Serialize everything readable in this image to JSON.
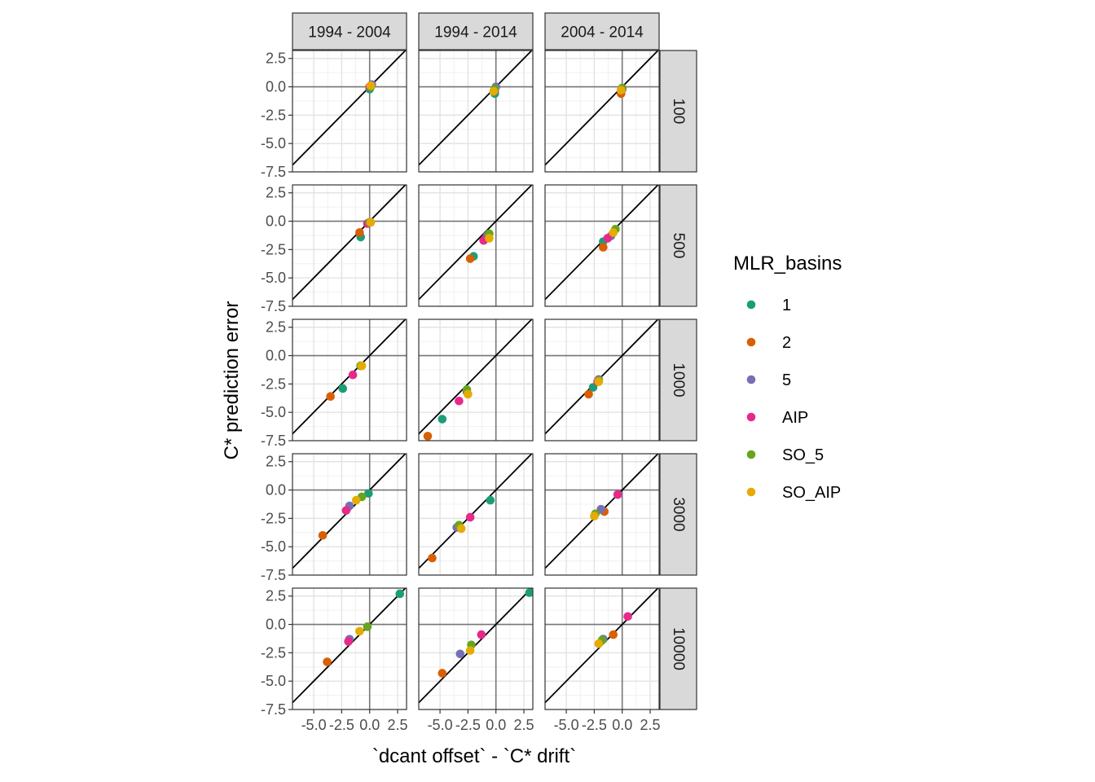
{
  "chart_data": {
    "type": "scatter",
    "title": "",
    "xlabel": "`dcant offset` - `C* drift`",
    "ylabel": "C* prediction error",
    "xlim": [
      -6.9,
      3.3
    ],
    "ylim": [
      -7.5,
      3.2
    ],
    "x_ticks": [
      -5.0,
      -2.5,
      0.0,
      2.5
    ],
    "x_tick_labels": [
      "-5.0",
      "-2.5",
      "0.0",
      "2.5"
    ],
    "y_ticks": [
      2.5,
      0.0,
      -2.5,
      -5.0,
      -7.5
    ],
    "y_tick_labels": [
      "2.5",
      "0.0",
      "-2.5",
      "-5.0",
      "-7.5"
    ],
    "grid": true,
    "reference_line": "y = x",
    "column_facets": [
      "1994 - 2004",
      "1994 - 2014",
      "2004 - 2014"
    ],
    "row_facets": [
      "100",
      "500",
      "1000",
      "3000",
      "10000"
    ],
    "legend": {
      "title": "MLR_basins",
      "placement": "right",
      "entries": [
        {
          "label": "1",
          "color": "#1B9E77"
        },
        {
          "label": "2",
          "color": "#D95F02"
        },
        {
          "label": "5",
          "color": "#7570B3"
        },
        {
          "label": "AIP",
          "color": "#E7298A"
        },
        {
          "label": "SO_5",
          "color": "#66A61E"
        },
        {
          "label": "SO_AIP",
          "color": "#E6AB02"
        }
      ]
    },
    "series_order": [
      "1",
      "2",
      "5",
      "AIP",
      "SO_5",
      "SO_AIP"
    ],
    "panels": [
      [
        {
          "1": [
            0.0,
            -0.2
          ],
          "2": [
            0.1,
            0.1
          ],
          "5": [
            0.2,
            0.2
          ],
          "AIP": [
            0.0,
            0.0
          ],
          "SO_5": [
            0.1,
            0.0
          ],
          "SO_AIP": [
            0.1,
            0.1
          ]
        },
        {
          "1": [
            -0.1,
            -0.6
          ],
          "2": [
            -0.2,
            -0.4
          ],
          "5": [
            0.0,
            0.0
          ],
          "AIP": [
            -0.1,
            -0.3
          ],
          "SO_5": [
            -0.1,
            -0.2
          ],
          "SO_AIP": [
            -0.2,
            -0.4
          ]
        },
        {
          "1": [
            -0.1,
            -0.3
          ],
          "2": [
            -0.1,
            -0.6
          ],
          "5": [
            -0.1,
            -0.3
          ],
          "AIP": [
            0.0,
            -0.2
          ],
          "SO_5": [
            0.0,
            -0.1
          ],
          "SO_AIP": [
            -0.1,
            -0.3
          ]
        }
      ],
      [
        {
          "1": [
            -0.8,
            -1.4
          ],
          "2": [
            -0.9,
            -1.0
          ],
          "5": [
            0.0,
            -0.1
          ],
          "AIP": [
            -0.2,
            -0.2
          ],
          "SO_5": [
            0.0,
            -0.1
          ],
          "SO_AIP": [
            0.1,
            -0.1
          ]
        },
        {
          "1": [
            -2.0,
            -3.1
          ],
          "2": [
            -2.3,
            -3.3
          ],
          "5": [
            -0.8,
            -1.3
          ],
          "AIP": [
            -1.1,
            -1.7
          ],
          "SO_5": [
            -0.6,
            -1.1
          ],
          "SO_AIP": [
            -0.6,
            -1.5
          ]
        },
        {
          "1": [
            -1.7,
            -1.8
          ],
          "2": [
            -1.7,
            -2.3
          ],
          "5": [
            -1.0,
            -1.3
          ],
          "AIP": [
            -1.3,
            -1.5
          ],
          "SO_5": [
            -0.6,
            -0.7
          ],
          "SO_AIP": [
            -0.8,
            -1.0
          ]
        }
      ],
      [
        {
          "1": [
            -2.4,
            -2.9
          ],
          "2": [
            -3.5,
            -3.6
          ],
          "5": [
            -0.8,
            -0.9
          ],
          "AIP": [
            -1.5,
            -1.7
          ],
          "SO_5": [
            -0.8,
            -0.9
          ],
          "SO_AIP": [
            -0.7,
            -0.9
          ]
        },
        {
          "1": [
            -4.8,
            -5.6
          ],
          "2": [
            -6.1,
            -7.1
          ],
          "5": [
            -2.6,
            -3.2
          ],
          "AIP": [
            -3.3,
            -4.0
          ],
          "SO_5": [
            -2.6,
            -3.0
          ],
          "SO_AIP": [
            -2.5,
            -3.4
          ]
        },
        {
          "1": [
            -2.6,
            -2.8
          ],
          "2": [
            -3.0,
            -3.4
          ],
          "5": [
            -2.1,
            -2.1
          ],
          "AIP": [
            -2.2,
            -2.3
          ],
          "SO_5": [
            -2.1,
            -2.2
          ],
          "SO_AIP": [
            -2.1,
            -2.3
          ]
        }
      ],
      [
        {
          "1": [
            -0.1,
            -0.3
          ],
          "2": [
            -4.2,
            -4.0
          ],
          "5": [
            -1.8,
            -1.4
          ],
          "AIP": [
            -2.1,
            -1.8
          ],
          "SO_5": [
            -0.7,
            -0.6
          ],
          "SO_AIP": [
            -1.2,
            -0.9
          ]
        },
        {
          "1": [
            -0.5,
            -0.9
          ],
          "2": [
            -5.7,
            -6.0
          ],
          "5": [
            -3.5,
            -3.3
          ],
          "AIP": [
            -2.3,
            -2.4
          ],
          "SO_5": [
            -3.3,
            -3.1
          ],
          "SO_AIP": [
            -3.1,
            -3.4
          ]
        },
        {
          "1": [
            -0.4,
            -0.4
          ],
          "2": [
            -1.6,
            -1.9
          ],
          "5": [
            -1.9,
            -1.7
          ],
          "AIP": [
            -0.4,
            -0.4
          ],
          "SO_5": [
            -2.4,
            -2.1
          ],
          "SO_AIP": [
            -2.5,
            -2.3
          ]
        }
      ],
      [
        {
          "1": [
            2.7,
            2.7
          ],
          "2": [
            -3.8,
            -3.3
          ],
          "5": [
            -1.8,
            -1.3
          ],
          "AIP": [
            -1.9,
            -1.5
          ],
          "SO_5": [
            -0.2,
            -0.2
          ],
          "SO_AIP": [
            -0.9,
            -0.6
          ]
        },
        {
          "1": [
            3.0,
            2.8
          ],
          "2": [
            -4.8,
            -4.3
          ],
          "5": [
            -3.2,
            -2.6
          ],
          "AIP": [
            -1.3,
            -0.9
          ],
          "SO_5": [
            -2.2,
            -1.8
          ],
          "SO_AIP": [
            -2.3,
            -2.3
          ]
        },
        {
          "1": [
            -1.7,
            -1.3
          ],
          "2": [
            -0.8,
            -0.9
          ],
          "5": [
            -1.7,
            -1.3
          ],
          "AIP": [
            0.5,
            0.7
          ],
          "SO_5": [
            -1.8,
            -1.4
          ],
          "SO_AIP": [
            -2.1,
            -1.7
          ]
        }
      ]
    ]
  }
}
